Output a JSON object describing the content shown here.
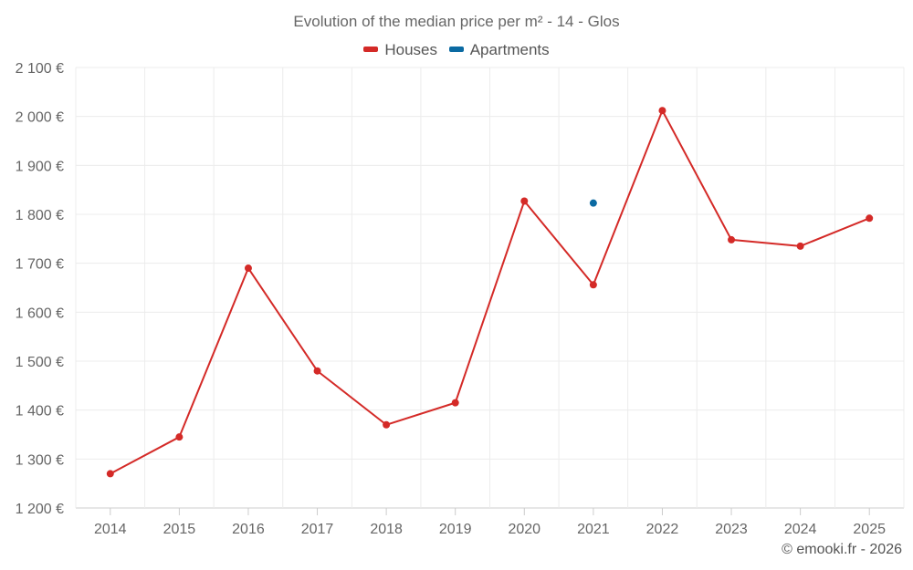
{
  "chart_data": {
    "type": "line",
    "title": "Evolution of the median price per m² - 14 - Glos",
    "xlabel": "",
    "ylabel": "",
    "categories": [
      "2014",
      "2015",
      "2016",
      "2017",
      "2018",
      "2019",
      "2020",
      "2021",
      "2022",
      "2023",
      "2024",
      "2025"
    ],
    "ylim": [
      1200,
      2100
    ],
    "yticks": [
      1200,
      1300,
      1400,
      1500,
      1600,
      1700,
      1800,
      1900,
      2000,
      2100
    ],
    "ytick_labels": [
      "1 200 €",
      "1 300 €",
      "1 400 €",
      "1 500 €",
      "1 600 €",
      "1 700 €",
      "1 800 €",
      "1 900 €",
      "2 000 €",
      "2 100 €"
    ],
    "grid": true,
    "legend_position": "top-center",
    "series": [
      {
        "name": "Houses",
        "color": "#d42a27",
        "values": [
          1270,
          1345,
          1690,
          1480,
          1370,
          1415,
          1827,
          1656,
          2012,
          1748,
          1735,
          1792
        ]
      },
      {
        "name": "Apartments",
        "color": "#0b6aa2",
        "values": [
          null,
          null,
          null,
          null,
          null,
          null,
          null,
          1823,
          null,
          null,
          null,
          null
        ]
      }
    ]
  },
  "credit": "© emooki.fr - 2026"
}
